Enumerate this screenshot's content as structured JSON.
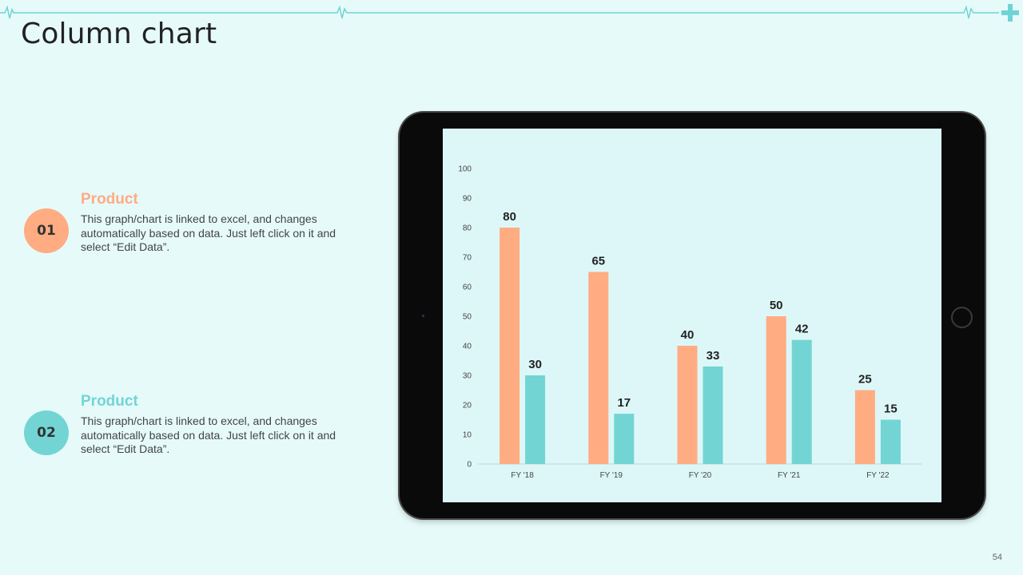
{
  "slide": {
    "title": "Column chart",
    "page_number": "54"
  },
  "colors": {
    "accent_line": "#6fd3d6",
    "series_1": "#ffac82",
    "series_2": "#72d5d4"
  },
  "decoration": {
    "top_line_icon": "heartbeat-line-icon",
    "corner_icon": "plus-icon"
  },
  "info_blocks": [
    {
      "number": "01",
      "title": "Product",
      "text": "This graph/chart is linked to excel, and changes automatically based on data. Just left click on it and select “Edit Data”."
    },
    {
      "number": "02",
      "title": "Product",
      "text": "This graph/chart is linked to excel, and changes automatically based on data. Just left click on it and select “Edit Data”."
    }
  ],
  "chart_data": {
    "type": "bar",
    "categories": [
      "FY '18",
      "FY '19",
      "FY '20",
      "FY '21",
      "FY '22"
    ],
    "series": [
      {
        "values": [
          80,
          65,
          40,
          50,
          25
        ]
      },
      {
        "values": [
          30,
          17,
          33,
          42,
          15
        ]
      }
    ],
    "ylim": [
      0,
      100
    ],
    "yticks": [
      0,
      10,
      20,
      30,
      40,
      50,
      60,
      70,
      80,
      90,
      100
    ],
    "grid": false,
    "legend": "none",
    "data_labels": true
  }
}
